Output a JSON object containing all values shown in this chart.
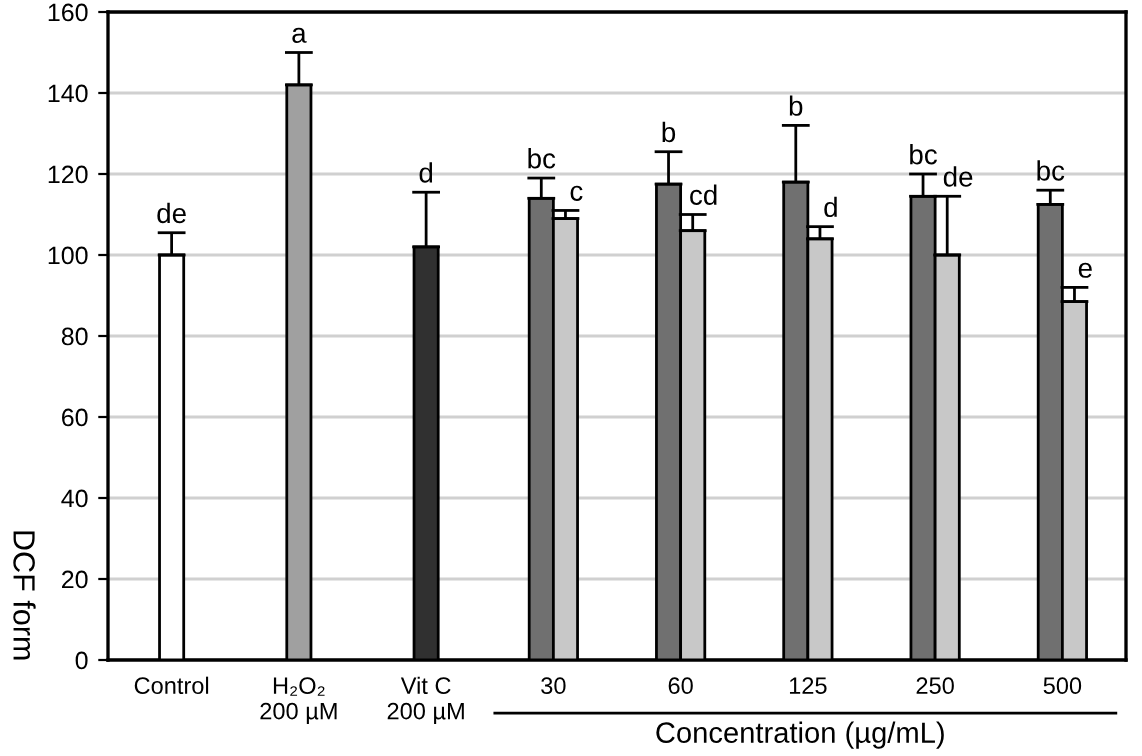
{
  "chart_data": {
    "type": "bar",
    "categories": [
      "Control",
      "H₂O₂\n200 µM",
      "Vit C\n200 µM",
      "30",
      "60",
      "125",
      "250",
      "500"
    ],
    "series": [
      {
        "colors": [
          "#ffffff",
          "#a0a0a0",
          "#303030",
          "#707070",
          "#707070",
          "#707070",
          "#707070",
          "#707070"
        ],
        "values": [
          100,
          142,
          102,
          114,
          117.5,
          118,
          114.5,
          112.5
        ],
        "errors": [
          [
            100,
            105.5
          ],
          [
            142,
            150
          ],
          [
            102,
            115.5
          ],
          [
            114,
            119
          ],
          [
            117.5,
            125.5
          ],
          [
            118,
            132
          ],
          [
            114.5,
            120
          ],
          [
            112.5,
            116
          ]
        ],
        "value_labels": [
          "de",
          "a",
          "d",
          "bc",
          "b",
          "b",
          "bc",
          "bc"
        ]
      },
      {
        "color": "#c8c8c8",
        "values": [
          null,
          null,
          null,
          109,
          106,
          104,
          100,
          88.5
        ],
        "errors": [
          null,
          null,
          null,
          [
            109,
            111
          ],
          [
            106,
            110
          ],
          [
            104,
            107
          ],
          [
            100,
            114.5
          ],
          [
            88.5,
            92
          ]
        ],
        "value_labels": [
          null,
          null,
          null,
          "c",
          "cd",
          "d",
          "de",
          "e"
        ]
      }
    ],
    "ylabel": "DCF form",
    "xlabel": "Concentration (µg/mL)",
    "ylim": [
      0,
      160
    ],
    "yticks": [
      0,
      20,
      40,
      60,
      80,
      100,
      120,
      140,
      160
    ],
    "grid": "y"
  }
}
